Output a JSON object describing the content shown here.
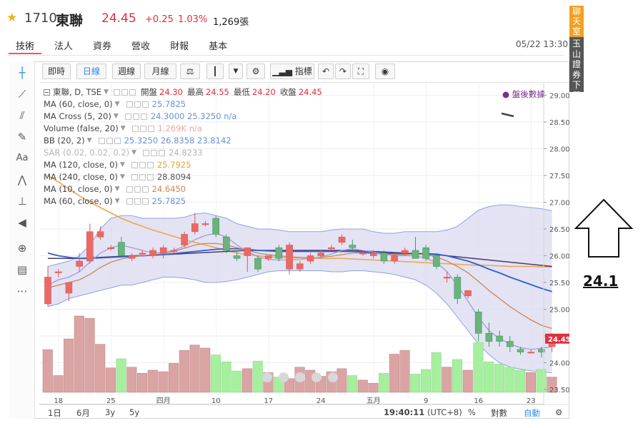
{
  "quote": {
    "code": "1710",
    "name": "東聯",
    "price": "24.45",
    "change": "+0.25",
    "change_pct": "1.03%",
    "volume": "1,269張"
  },
  "tabs": [
    {
      "label": "技術",
      "active": true
    },
    {
      "label": "法人"
    },
    {
      "label": "資券"
    },
    {
      "label": "營收"
    },
    {
      "label": "財報"
    },
    {
      "label": "基本"
    }
  ],
  "datetime": "05/22 13:30",
  "banner": {
    "top": "聊天室",
    "bottom": "玉山證券下單"
  },
  "toolbar": {
    "buttons": [
      "即時",
      "日線",
      "週線",
      "月線"
    ],
    "active": "日線",
    "indicators_label": "指標"
  },
  "legend": {
    "main": {
      "label": "東聯, D, TSE",
      "open_label": "開盤",
      "open": "24.30",
      "high_label": "最高",
      "high": "24.55",
      "low_label": "最低",
      "low": "24.20",
      "close_label": "收盤",
      "close": "24.45"
    },
    "studies": [
      {
        "label": "MA (60, close, 0)",
        "values": "25.7825",
        "color": "#6c8fd6"
      },
      {
        "label": "MA Cross (5, 20)",
        "values": "24.3000  25.3250  n/a",
        "color": "#6c8fd6"
      },
      {
        "label": "Volume (false, 20)",
        "values": "1.269K  n/a",
        "color": "#e6a7a7"
      },
      {
        "label": "BB (20, 2)",
        "values": "25.3250  26.8358  23.8142",
        "color": "#6c8fd6"
      },
      {
        "label": "SAR (0.02, 0.02, 0.2)",
        "values": "24.8233",
        "color": "#b5b5b5"
      },
      {
        "label": "MA (120, close, 0)",
        "values": "25.7925",
        "color": "#f0a030"
      },
      {
        "label": "MA (240, close, 0)",
        "values": "28.8094",
        "color": "#555555"
      },
      {
        "label": "MA (10, close, 0)",
        "values": "24.6450",
        "color": "#d2844c"
      },
      {
        "label": "MA (60, close, 0)",
        "values": "25.7825",
        "color": "#6c8fd6"
      }
    ],
    "post_market": "盤後數據"
  },
  "chart_data": {
    "type": "candlestick",
    "y_ticks": [
      "29.00",
      "28.50",
      "28.00",
      "27.50",
      "27.00",
      "26.50",
      "26.00",
      "25.50",
      "25.00",
      "24.50",
      "24.00",
      "23.50"
    ],
    "ylim": [
      23.22,
      29.22
    ],
    "x_ticks": [
      "18",
      "25",
      "四月",
      "10",
      "17",
      "24",
      "五月",
      "9",
      "16",
      "23"
    ],
    "last_price_label": "24.45",
    "candles": [
      {
        "o": 25.1,
        "h": 25.8,
        "l": 25.05,
        "c": 25.6
      },
      {
        "o": 25.7,
        "h": 25.75,
        "l": 25.6,
        "c": 25.7
      },
      {
        "o": 25.3,
        "h": 25.5,
        "l": 25.15,
        "c": 25.5
      },
      {
        "o": 25.8,
        "h": 26.05,
        "l": 25.7,
        "c": 25.9
      },
      {
        "o": 25.9,
        "h": 26.6,
        "l": 25.85,
        "c": 26.45
      },
      {
        "o": 26.35,
        "h": 26.55,
        "l": 26.3,
        "c": 26.45
      },
      {
        "o": 26.15,
        "h": 26.2,
        "l": 26.1,
        "c": 26.15
      },
      {
        "o": 26.25,
        "h": 26.35,
        "l": 26.0,
        "c": 26.0
      },
      {
        "o": 25.95,
        "h": 26.05,
        "l": 25.9,
        "c": 26.0
      },
      {
        "o": 26.05,
        "h": 26.1,
        "l": 26.0,
        "c": 26.05
      },
      {
        "o": 26.0,
        "h": 26.15,
        "l": 25.95,
        "c": 26.1
      },
      {
        "o": 26.05,
        "h": 26.2,
        "l": 25.95,
        "c": 26.15
      },
      {
        "o": 26.1,
        "h": 26.15,
        "l": 26.05,
        "c": 26.1
      },
      {
        "o": 26.2,
        "h": 26.45,
        "l": 26.15,
        "c": 26.4
      },
      {
        "o": 26.45,
        "h": 26.8,
        "l": 26.4,
        "c": 26.6
      },
      {
        "o": 26.6,
        "h": 26.65,
        "l": 26.55,
        "c": 26.6
      },
      {
        "o": 26.7,
        "h": 26.75,
        "l": 26.35,
        "c": 26.4
      },
      {
        "o": 26.35,
        "h": 26.4,
        "l": 26.05,
        "c": 26.1
      },
      {
        "o": 26.0,
        "h": 26.1,
        "l": 25.9,
        "c": 25.95
      },
      {
        "o": 26.0,
        "h": 26.15,
        "l": 25.7,
        "c": 26.15
      },
      {
        "o": 25.95,
        "h": 26.0,
        "l": 25.7,
        "c": 25.75
      },
      {
        "o": 25.95,
        "h": 26.0,
        "l": 25.9,
        "c": 26.0
      },
      {
        "o": 26.15,
        "h": 26.2,
        "l": 25.9,
        "c": 25.95
      },
      {
        "o": 25.75,
        "h": 26.25,
        "l": 25.65,
        "c": 26.2
      },
      {
        "o": 25.75,
        "h": 25.9,
        "l": 25.7,
        "c": 25.85
      },
      {
        "o": 25.9,
        "h": 26.05,
        "l": 25.85,
        "c": 26.0
      },
      {
        "o": 26.0,
        "h": 26.1,
        "l": 25.95,
        "c": 26.05
      },
      {
        "o": 26.15,
        "h": 26.2,
        "l": 26.1,
        "c": 26.15
      },
      {
        "o": 26.25,
        "h": 26.4,
        "l": 26.2,
        "c": 26.35
      },
      {
        "o": 26.2,
        "h": 26.3,
        "l": 26.1,
        "c": 26.15
      },
      {
        "o": 26.05,
        "h": 26.1,
        "l": 26.0,
        "c": 26.05
      },
      {
        "o": 26.0,
        "h": 26.1,
        "l": 25.95,
        "c": 26.05
      },
      {
        "o": 26.05,
        "h": 26.1,
        "l": 25.85,
        "c": 25.9
      },
      {
        "o": 25.9,
        "h": 26.05,
        "l": 25.85,
        "c": 26.0
      },
      {
        "o": 26.05,
        "h": 26.15,
        "l": 26.0,
        "c": 26.1
      },
      {
        "o": 26.1,
        "h": 26.35,
        "l": 25.95,
        "c": 25.95
      },
      {
        "o": 26.15,
        "h": 26.2,
        "l": 25.9,
        "c": 25.95
      },
      {
        "o": 26.0,
        "h": 26.05,
        "l": 25.75,
        "c": 25.8
      },
      {
        "o": 25.6,
        "h": 25.7,
        "l": 25.5,
        "c": 25.6
      },
      {
        "o": 25.6,
        "h": 25.65,
        "l": 25.1,
        "c": 25.2
      },
      {
        "o": 25.25,
        "h": 25.35,
        "l": 25.2,
        "c": 25.35
      },
      {
        "o": 24.95,
        "h": 25.0,
        "l": 24.4,
        "c": 24.55
      },
      {
        "o": 24.55,
        "h": 24.75,
        "l": 24.3,
        "c": 24.4
      },
      {
        "o": 24.5,
        "h": 24.6,
        "l": 24.3,
        "c": 24.4
      },
      {
        "o": 24.4,
        "h": 24.5,
        "l": 24.2,
        "c": 24.3
      },
      {
        "o": 24.25,
        "h": 24.3,
        "l": 24.15,
        "c": 24.2
      },
      {
        "o": 24.2,
        "h": 24.25,
        "l": 24.2,
        "c": 24.2
      },
      {
        "o": 24.25,
        "h": 24.3,
        "l": 24.1,
        "c": 24.2
      },
      {
        "o": 24.3,
        "h": 24.55,
        "l": 24.2,
        "c": 24.45
      }
    ],
    "volume_relative": [
      0.56,
      0.22,
      0.7,
      1.0,
      0.97,
      0.63,
      0.32,
      0.44,
      0.33,
      0.25,
      0.29,
      0.27,
      0.38,
      0.55,
      0.62,
      0.58,
      0.49,
      0.4,
      0.28,
      0.31,
      0.41,
      0.26,
      0.2,
      0.18,
      0.33,
      0.29,
      0.21,
      0.27,
      0.31,
      0.22,
      0.16,
      0.12,
      0.25,
      0.5,
      0.55,
      0.24,
      0.3,
      0.52,
      0.33,
      0.43,
      0.29,
      0.65,
      0.4,
      0.37,
      0.33,
      0.29,
      0.26,
      0.3,
      0.2
    ],
    "bollinger": {
      "upper": [
        25.8,
        25.85,
        25.9,
        26.0,
        26.2,
        26.5,
        26.7,
        26.75,
        26.75,
        26.7,
        26.7,
        26.7,
        26.7,
        26.72,
        26.78,
        26.8,
        26.75,
        26.7,
        26.6,
        26.55,
        26.5,
        26.5,
        26.48,
        26.45,
        26.45,
        26.45,
        26.45,
        26.48,
        26.5,
        26.5,
        26.5,
        26.45,
        26.42,
        26.42,
        26.45,
        26.45,
        26.45,
        26.45,
        26.48,
        26.55,
        26.7,
        26.85,
        26.92,
        26.95,
        26.95,
        26.92,
        26.9,
        26.88,
        26.84
      ],
      "lower": [
        25.05,
        25.1,
        25.2,
        25.25,
        25.3,
        25.35,
        25.4,
        25.45,
        25.45,
        25.5,
        25.55,
        25.6,
        25.6,
        25.58,
        25.55,
        25.5,
        25.5,
        25.52,
        25.55,
        25.6,
        25.65,
        25.7,
        25.72,
        25.72,
        25.72,
        25.72,
        25.72,
        25.7,
        25.7,
        25.72,
        25.72,
        25.7,
        25.68,
        25.65,
        25.6,
        25.55,
        25.45,
        25.3,
        25.1,
        24.85,
        24.6,
        24.35,
        24.15,
        24.0,
        23.92,
        23.88,
        23.85,
        23.83,
        23.81
      ]
    },
    "ma": {
      "ma120": [
        27.5,
        27.38,
        27.25,
        27.12,
        27.0,
        26.9,
        26.8,
        26.7,
        26.62,
        26.55,
        26.48,
        26.42,
        26.36,
        26.3,
        26.25,
        26.2,
        26.15,
        26.1,
        26.05,
        26.02,
        26.0,
        25.98,
        25.97,
        25.96,
        25.96,
        25.95,
        25.95,
        25.95,
        25.95,
        25.94,
        25.93,
        25.92,
        25.91,
        25.9,
        25.89,
        25.88,
        25.87,
        25.86,
        25.85,
        25.84,
        25.83,
        25.82,
        25.82,
        25.81,
        25.8,
        25.8,
        25.8,
        25.79,
        25.79
      ],
      "ma60_dark": [
        25.95,
        25.95,
        25.95,
        25.95,
        25.96,
        25.97,
        25.98,
        25.99,
        26.0,
        26.0,
        26.01,
        26.02,
        26.03,
        26.04,
        26.05,
        26.06,
        26.07,
        26.08,
        26.09,
        26.1,
        26.1,
        26.1,
        26.1,
        26.1,
        26.1,
        26.1,
        26.1,
        26.1,
        26.1,
        26.1,
        26.09,
        26.08,
        26.07,
        26.06,
        26.05,
        26.04,
        26.03,
        26.02,
        26.0,
        25.98,
        25.96,
        25.94,
        25.92,
        25.9,
        25.88,
        25.86,
        25.84,
        25.82,
        25.8
      ],
      "ma20": [
        26.05,
        26.0,
        25.97,
        25.95,
        25.95,
        25.96,
        25.97,
        25.98,
        25.99,
        26.0,
        26.01,
        26.02,
        26.04,
        26.06,
        26.08,
        26.1,
        26.12,
        26.13,
        26.13,
        26.12,
        26.1,
        26.09,
        26.08,
        26.08,
        26.08,
        26.08,
        26.08,
        26.08,
        26.08,
        26.08,
        26.07,
        26.06,
        26.05,
        26.04,
        26.04,
        26.04,
        26.04,
        26.03,
        26.0,
        25.95,
        25.9,
        25.83,
        25.75,
        25.68,
        25.6,
        25.53,
        25.46,
        25.39,
        25.33
      ],
      "ma10": [
        25.4,
        25.45,
        25.5,
        25.55,
        25.65,
        25.78,
        25.88,
        25.94,
        25.98,
        26.0,
        26.02,
        26.04,
        26.08,
        26.14,
        26.2,
        26.23,
        26.23,
        26.2,
        26.15,
        26.1,
        26.05,
        26.02,
        26.0,
        25.98,
        25.97,
        25.96,
        25.97,
        25.99,
        26.02,
        26.05,
        26.05,
        26.04,
        26.03,
        26.02,
        26.02,
        26.03,
        26.02,
        25.98,
        25.9,
        25.8,
        25.68,
        25.52,
        25.35,
        25.2,
        25.05,
        24.92,
        24.8,
        24.7,
        24.64
      ],
      "ma5": [
        25.45,
        25.55,
        25.6,
        25.7,
        25.88,
        26.05,
        26.15,
        26.2,
        26.15,
        26.1,
        26.05,
        26.06,
        26.1,
        26.18,
        26.3,
        26.38,
        26.42,
        26.35,
        26.2,
        26.08,
        25.98,
        25.93,
        25.92,
        25.92,
        25.93,
        25.95,
        25.98,
        26.03,
        26.1,
        26.13,
        26.1,
        26.07,
        26.03,
        26.0,
        26.0,
        26.0,
        25.95,
        25.88,
        25.7,
        25.45,
        25.15,
        24.85,
        24.6,
        24.45,
        24.35,
        24.28,
        24.25,
        24.27,
        24.3
      ]
    }
  },
  "bottombar": {
    "ranges": [
      "1日",
      "6月",
      "3y",
      "5y"
    ],
    "time": "19:40:11",
    "tz": "(UTC+8)",
    "pct": "%",
    "log": "對數",
    "auto": "自動"
  },
  "annotation": {
    "value": "24.1"
  }
}
